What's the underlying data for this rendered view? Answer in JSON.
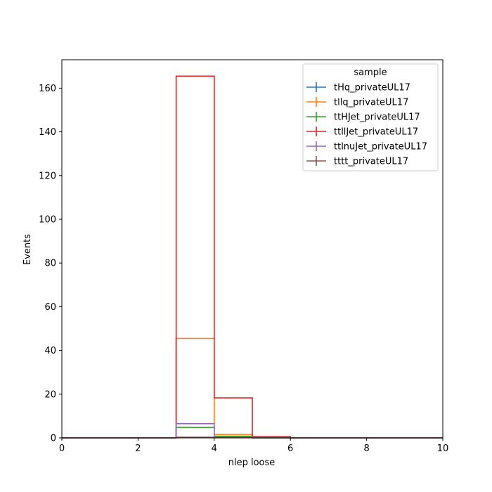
{
  "chart_data": {
    "type": "bar",
    "histtype": "step",
    "xlabel": "nlep loose",
    "ylabel": "Events",
    "xlim": [
      0,
      10
    ],
    "ylim": [
      0,
      173
    ],
    "xticks": [
      0,
      2,
      4,
      6,
      8,
      10
    ],
    "yticks": [
      0,
      20,
      40,
      60,
      80,
      100,
      120,
      140,
      160
    ],
    "bin_edges": [
      0,
      1,
      2,
      3,
      4,
      5,
      6,
      7,
      8,
      9,
      10
    ],
    "legend_title": "sample",
    "legend_location": "upper right",
    "grid": false,
    "series": [
      {
        "name": "tHq_privateUL17",
        "color": "#1f77b4",
        "values": [
          0,
          0,
          0,
          0.3,
          0.1,
          0,
          0,
          0,
          0,
          0
        ]
      },
      {
        "name": "tllq_privateUL17",
        "color": "#ff7f0e",
        "values": [
          0,
          0,
          0,
          45.5,
          1.6,
          0.1,
          0,
          0,
          0,
          0
        ]
      },
      {
        "name": "ttHJet_privateUL17",
        "color": "#2ca02c",
        "values": [
          0,
          0,
          0,
          4.8,
          0.8,
          0.1,
          0,
          0,
          0,
          0
        ]
      },
      {
        "name": "ttllJet_privateUL17",
        "color": "#d62728",
        "values": [
          0,
          0,
          0,
          165.5,
          18.3,
          0.6,
          0,
          0,
          0,
          0
        ]
      },
      {
        "name": "ttlnuJet_privateUL17",
        "color": "#9467bd",
        "values": [
          0,
          0,
          0,
          6.5,
          0.4,
          0,
          0,
          0,
          0,
          0
        ]
      },
      {
        "name": "tttt_privateUL17",
        "color": "#8c564b",
        "values": [
          0,
          0,
          0,
          0.1,
          0.1,
          0,
          0,
          0,
          0,
          0
        ]
      }
    ]
  }
}
